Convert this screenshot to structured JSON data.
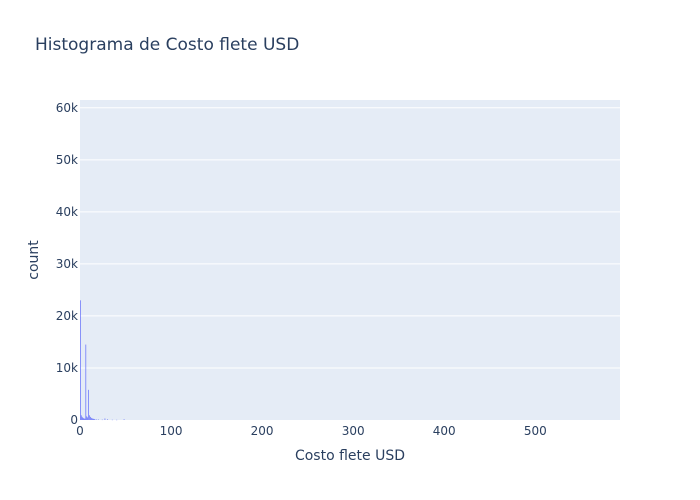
{
  "chart_data": {
    "type": "bar",
    "title": "Histograma de Costo flete USD",
    "xlabel": "Costo flete USD",
    "ylabel": "count",
    "xlim": [
      0,
      593
    ],
    "ylim": [
      0,
      61500
    ],
    "x_ticks": [
      0,
      100,
      200,
      300,
      400,
      500
    ],
    "x_tick_labels": [
      "0",
      "100",
      "200",
      "300",
      "400",
      "500"
    ],
    "y_ticks": [
      0,
      10000,
      20000,
      30000,
      40000,
      50000,
      60000
    ],
    "y_tick_labels": [
      "0",
      "10k",
      "20k",
      "30k",
      "40k",
      "50k",
      "60k"
    ],
    "bin_width": 1,
    "bins": [
      {
        "x": 0,
        "count": 23000
      },
      {
        "x": 1,
        "count": 900
      },
      {
        "x": 2,
        "count": 600
      },
      {
        "x": 3,
        "count": 400
      },
      {
        "x": 4,
        "count": 300
      },
      {
        "x": 5,
        "count": 250
      },
      {
        "x": 6,
        "count": 14500
      },
      {
        "x": 7,
        "count": 700
      },
      {
        "x": 8,
        "count": 500
      },
      {
        "x": 9,
        "count": 5800
      },
      {
        "x": 10,
        "count": 900
      },
      {
        "x": 11,
        "count": 600
      },
      {
        "x": 12,
        "count": 400
      },
      {
        "x": 13,
        "count": 300
      },
      {
        "x": 14,
        "count": 250
      },
      {
        "x": 15,
        "count": 200
      },
      {
        "x": 16,
        "count": 150
      },
      {
        "x": 18,
        "count": 120
      },
      {
        "x": 20,
        "count": 100
      },
      {
        "x": 24,
        "count": 80
      },
      {
        "x": 27,
        "count": 300
      },
      {
        "x": 30,
        "count": 150
      },
      {
        "x": 35,
        "count": 60
      },
      {
        "x": 40,
        "count": 50
      },
      {
        "x": 48,
        "count": 150
      }
    ],
    "colors": {
      "bar": "#636efa",
      "plot_bg": "#e5ecf6",
      "grid": "#ffffff",
      "text": "#2a3f5f"
    }
  }
}
